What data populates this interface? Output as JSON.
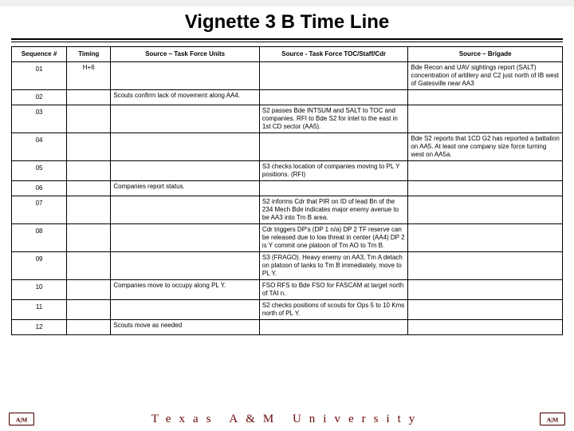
{
  "title": "Vignette 3 B Time Line",
  "columns": {
    "seq": "Sequence #",
    "timing": "Timing",
    "units": "Source – Task Force Units",
    "toc": "Source - Task Force TOC/Staff/Cdr",
    "bde": "Source – Brigade"
  },
  "col_widths": {
    "seq": "10%",
    "timing": "8%",
    "units": "27%",
    "toc": "27%",
    "bde": "28%"
  },
  "rows": [
    {
      "seq": "01",
      "timing": "H+6",
      "units": "",
      "toc": "",
      "bde": "Bde Recon and UAV sightings report (SALT) concentration of artillery and C2 just north of IB west of Gatesville near AA3"
    },
    {
      "seq": "02",
      "timing": "",
      "units": "Scouts confirm lack of movement along AA4.",
      "toc": "",
      "bde": ""
    },
    {
      "seq": "03",
      "timing": "",
      "units": "",
      "toc": "S2 passes Bde INTSUM and SALT to TOC and companies. RFI to Bde S2 for intel to the east in 1st CD sector (AA5).",
      "bde": ""
    },
    {
      "seq": "04",
      "timing": "",
      "units": "",
      "toc": "",
      "bde": "Bde S2 reports that 1CD G2 has reported a battalion on AA5. At least one company size force turning west on AA5a."
    },
    {
      "seq": "05",
      "timing": "",
      "units": "",
      "toc": "S3 checks location of companies moving to PL Y positions. (RFI)",
      "bde": ""
    },
    {
      "seq": "06",
      "timing": "",
      "units": "Companies report status.",
      "toc": "",
      "bde": ""
    },
    {
      "seq": "07",
      "timing": "",
      "units": "",
      "toc": "S2 informs Cdr that PIR on ID of lead Bn of the 234 Mech Bde indicates major enemy avenue to be AA3 into Tm B area.",
      "bde": ""
    },
    {
      "seq": "08",
      "timing": "",
      "units": "",
      "toc": "Cdr triggers DP's (DP 1 n/a) DP 2 TF reserve can be released due to low threat in center (AA4) DP 2 is Y commit one platoon of Tm AO to Tm B.",
      "bde": ""
    },
    {
      "seq": "09",
      "timing": "",
      "units": "",
      "toc": "S3 (FRAGO). Heavy enemy on AA3, Tm A detach on platoon of tanks to Tm B immediately, move to PL Y.",
      "bde": ""
    },
    {
      "seq": "10",
      "timing": "",
      "units": "Companies move to occupy along PL Y.",
      "toc": "FSO RFS to Bde FSO for FASCAM at target north of TAI n.",
      "bde": ""
    },
    {
      "seq": "11",
      "timing": "",
      "units": "",
      "toc": "S2 checks positions of scouts for Ops 5 to 10 Kms north of PL Y.",
      "bde": ""
    },
    {
      "seq": "12",
      "timing": "",
      "units": "Scouts move as needed",
      "toc": "",
      "bde": ""
    }
  ],
  "footer": "Texas A&M University",
  "colors": {
    "maroon": "#500000",
    "border": "#000000",
    "bg": "#ffffff",
    "watermark": "#7a7a7a"
  },
  "logo": {
    "letters": "ATM"
  }
}
